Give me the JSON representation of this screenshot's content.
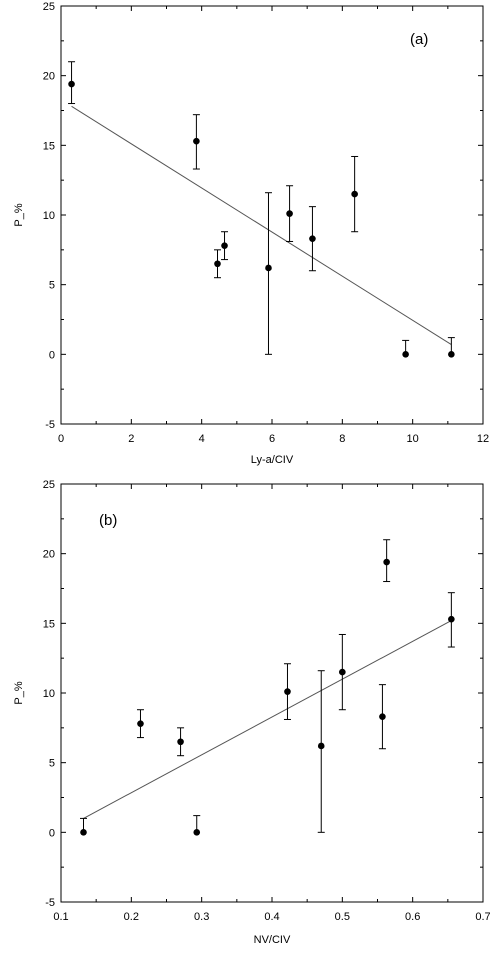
{
  "chart_data": [
    {
      "type": "scatter",
      "panel_label": "(a)",
      "xlabel": "Ly-a/CIV",
      "ylabel": "P_%",
      "xlim": [
        0,
        12
      ],
      "ylim": [
        -5,
        25
      ],
      "xticks": [
        "0",
        "2",
        "4",
        "6",
        "8",
        "10",
        "12"
      ],
      "yticks": [
        "-5",
        "0",
        "5",
        "10",
        "15",
        "20",
        "25"
      ],
      "grid": false,
      "legend": "none",
      "points": [
        {
          "x": 0.3,
          "y": 19.4,
          "err_plus": 1.6,
          "err_minus": 1.4
        },
        {
          "x": 3.85,
          "y": 15.3,
          "err_plus": 1.9,
          "err_minus": 2.0
        },
        {
          "x": 4.45,
          "y": 6.5,
          "err_plus": 1.0,
          "err_minus": 1.0
        },
        {
          "x": 4.65,
          "y": 7.8,
          "err_plus": 1.0,
          "err_minus": 1.0
        },
        {
          "x": 5.9,
          "y": 6.2,
          "err_plus": 5.4,
          "err_minus": 6.2
        },
        {
          "x": 6.5,
          "y": 10.1,
          "err_plus": 2.0,
          "err_minus": 2.0
        },
        {
          "x": 7.15,
          "y": 8.3,
          "err_plus": 2.3,
          "err_minus": 2.3
        },
        {
          "x": 8.35,
          "y": 11.5,
          "err_plus": 2.7,
          "err_minus": 2.7
        },
        {
          "x": 9.8,
          "y": 0.0,
          "err_plus": 1.0,
          "err_minus": 0.0
        },
        {
          "x": 11.1,
          "y": 0.0,
          "err_plus": 1.2,
          "err_minus": 0.0
        }
      ],
      "fit_line": {
        "x": [
          0.3,
          11.1
        ],
        "y": [
          17.8,
          0.7
        ]
      }
    },
    {
      "type": "scatter",
      "panel_label": "(b)",
      "xlabel": "NV/CIV",
      "ylabel": "P_%",
      "xlim": [
        0.1,
        0.7
      ],
      "ylim": [
        -5,
        25
      ],
      "xticks": [
        "0.1",
        "0.2",
        "0.3",
        "0.4",
        "0.5",
        "0.6",
        "0.7"
      ],
      "yticks": [
        "-5",
        "0",
        "5",
        "10",
        "15",
        "20",
        "25"
      ],
      "grid": false,
      "legend": "none",
      "points": [
        {
          "x": 0.132,
          "y": 0.0,
          "err_plus": 1.0,
          "err_minus": 0.0
        },
        {
          "x": 0.213,
          "y": 7.8,
          "err_plus": 1.0,
          "err_minus": 1.0
        },
        {
          "x": 0.27,
          "y": 6.5,
          "err_plus": 1.0,
          "err_minus": 1.0
        },
        {
          "x": 0.293,
          "y": 0.0,
          "err_plus": 1.2,
          "err_minus": 0.0
        },
        {
          "x": 0.422,
          "y": 10.1,
          "err_plus": 2.0,
          "err_minus": 2.0
        },
        {
          "x": 0.47,
          "y": 6.2,
          "err_plus": 5.4,
          "err_minus": 6.2
        },
        {
          "x": 0.5,
          "y": 11.5,
          "err_plus": 2.7,
          "err_minus": 2.7
        },
        {
          "x": 0.557,
          "y": 8.3,
          "err_plus": 2.3,
          "err_minus": 2.3
        },
        {
          "x": 0.563,
          "y": 19.4,
          "err_plus": 1.6,
          "err_minus": 1.4
        },
        {
          "x": 0.655,
          "y": 15.3,
          "err_plus": 1.9,
          "err_minus": 2.0
        }
      ],
      "fit_line": {
        "x": [
          0.132,
          0.655
        ],
        "y": [
          1.0,
          15.2
        ]
      }
    }
  ]
}
